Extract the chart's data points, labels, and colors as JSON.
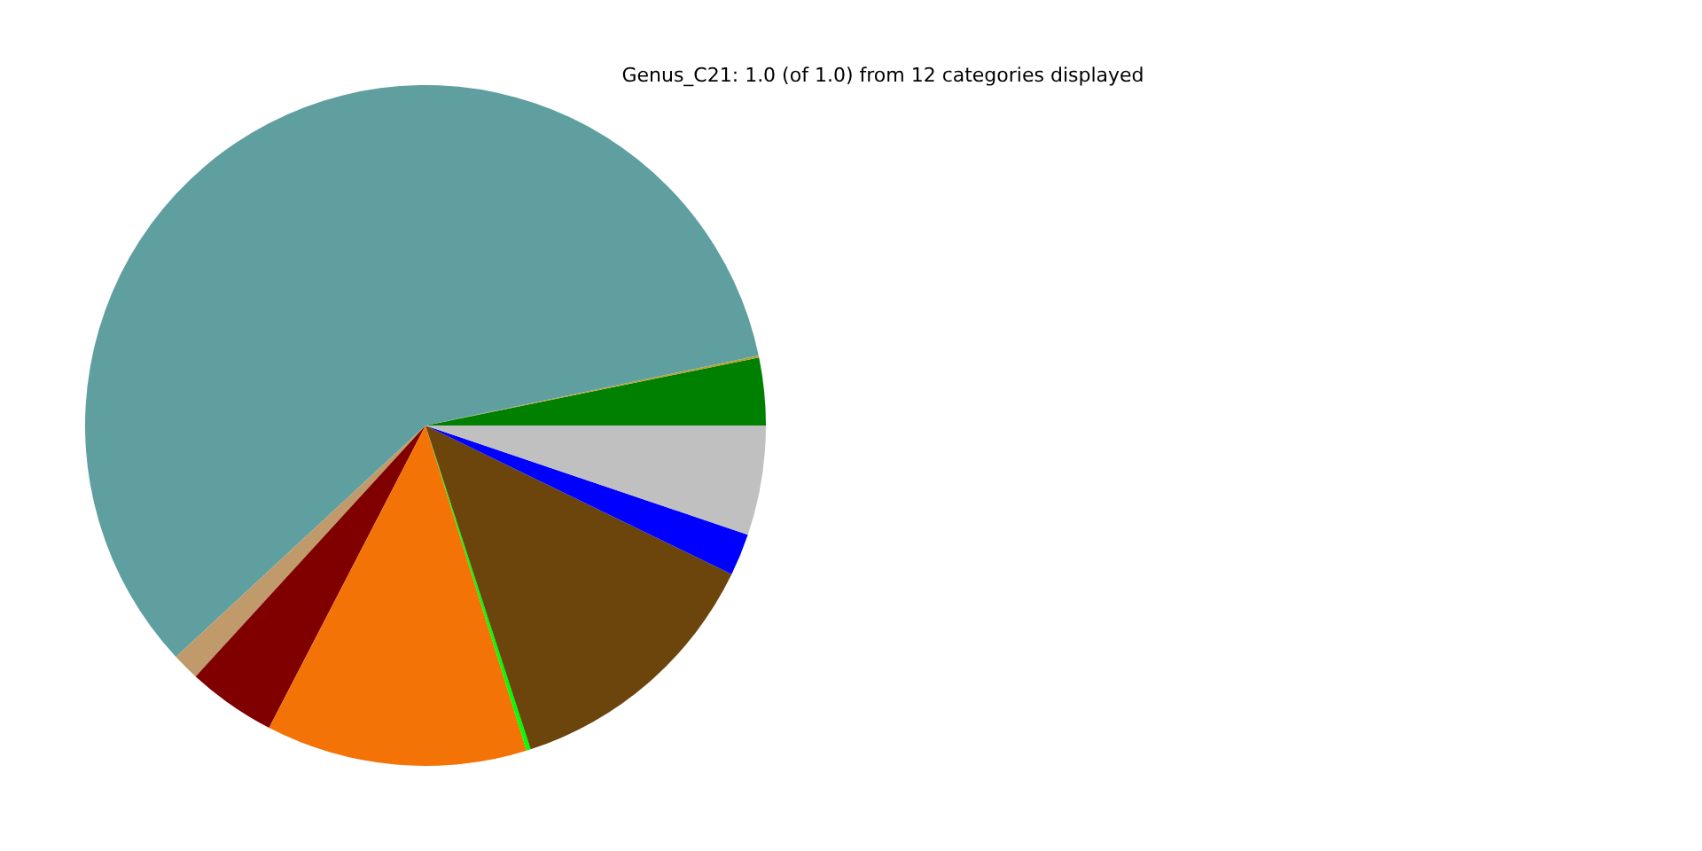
{
  "chart_data": {
    "type": "pie",
    "title": "Genus_C21: 1.0 (of 1.0) from 12 categories displayed",
    "categories": [
      null,
      null,
      null,
      null,
      null,
      null,
      null,
      null,
      null,
      null
    ],
    "values": [
      3.2,
      0.1,
      58.6,
      1.3,
      4.2,
      12.4,
      0.2,
      12.8,
      2.0,
      5.2
    ],
    "colors": [
      "#008000",
      "#b8a030",
      "#5f9f9f",
      "#c19a6b",
      "#800000",
      "#f47306",
      "#00ff00",
      "#6b450c",
      "#0000ff",
      "#c0c0c0"
    ]
  }
}
